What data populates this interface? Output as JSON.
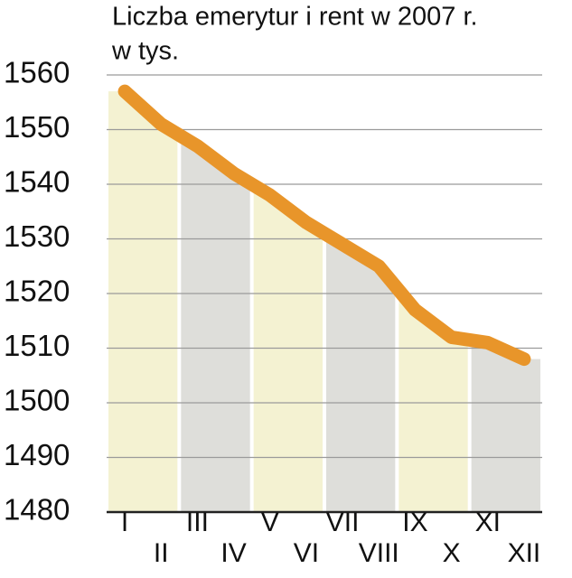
{
  "chart_data": {
    "type": "line",
    "title": "Liczba emerytur i rent w 2007 r.",
    "subtitle": "w tys.",
    "categories": [
      "I",
      "II",
      "III",
      "IV",
      "V",
      "VI",
      "VII",
      "VIII",
      "IX",
      "X",
      "XI",
      "XII"
    ],
    "series": [
      {
        "color": "#e8952a",
        "values": [
          1557,
          1551,
          1547,
          1542,
          1538,
          1533,
          1529,
          1525,
          1517,
          1512,
          1511,
          1508
        ]
      }
    ],
    "ylim": [
      1480,
      1560
    ],
    "yticks": [
      1480,
      1490,
      1500,
      1510,
      1520,
      1530,
      1540,
      1550,
      1560
    ],
    "grid": true,
    "band_colors": [
      "#f4f2d2",
      "#dededa"
    ]
  }
}
